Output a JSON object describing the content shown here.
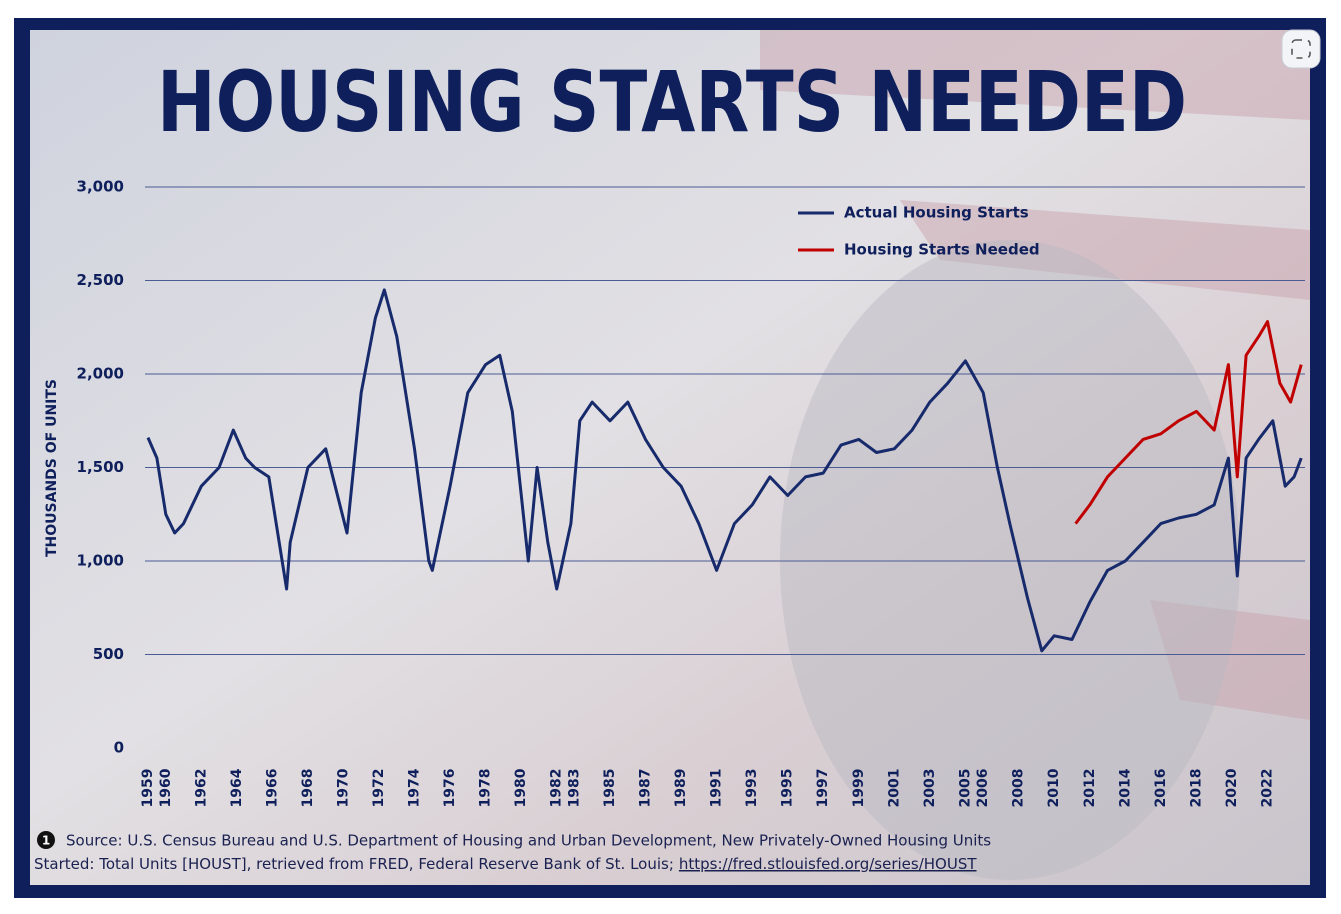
{
  "chart_data": {
    "type": "line",
    "title": "HOUSING STARTS NEEDED",
    "y_label": "THOUSANDS OF UNITS",
    "xlim": [
      1959,
      2024
    ],
    "xticks": [
      1959,
      1960,
      1962,
      1964,
      1966,
      1968,
      1970,
      1972,
      1974,
      1976,
      1978,
      1980,
      1982,
      1983,
      1985,
      1987,
      1989,
      1991,
      1993,
      1995,
      1997,
      1999,
      2001,
      2003,
      2005,
      2006,
      2008,
      2010,
      2012,
      2014,
      2016,
      2018,
      2020,
      2022
    ],
    "ylim": [
      0,
      3000
    ],
    "yticks": [
      0,
      500,
      {
        "value": 1000,
        "label": "1,000"
      },
      {
        "value": 1500,
        "label": "1,500"
      },
      {
        "value": 2000,
        "label": "2,000"
      },
      {
        "value": 2500,
        "label": "2,500"
      },
      {
        "value": 3000,
        "label": "3,000"
      }
    ],
    "grid": true,
    "legend": "top-right",
    "series": [
      {
        "name": "Actual Housing Starts",
        "color": "#172a6b",
        "x": [
          1959.0,
          1959.5,
          1960.0,
          1960.5,
          1961.0,
          1962.0,
          1963.0,
          1963.8,
          1964.5,
          1965.0,
          1965.8,
          1966.8,
          1967.0,
          1968.0,
          1969.0,
          1969.8,
          1970.2,
          1971.0,
          1971.8,
          1972.3,
          1973.0,
          1974.0,
          1974.8,
          1975.0,
          1976.0,
          1977.0,
          1978.0,
          1978.8,
          1979.5,
          1980.4,
          1980.9,
          1981.5,
          1982.0,
          1982.8,
          1983.3,
          1984.0,
          1985.0,
          1986.0,
          1987.0,
          1988.0,
          1989.0,
          1990.0,
          1991.0,
          1992.0,
          1993.0,
          1994.0,
          1995.0,
          1996.0,
          1997.0,
          1998.0,
          1999.0,
          2000.0,
          2001.0,
          2002.0,
          2003.0,
          2004.0,
          2005.0,
          2006.0,
          2006.8,
          2007.5,
          2008.5,
          2009.3,
          2010.0,
          2011.0,
          2012.0,
          2013.0,
          2014.0,
          2015.0,
          2016.0,
          2017.0,
          2018.0,
          2019.0,
          2019.8,
          2020.3,
          2020.8,
          2021.5,
          2022.3,
          2023.0,
          2023.5,
          2023.9
        ],
        "values": [
          1660,
          1550,
          1250,
          1150,
          1200,
          1400,
          1500,
          1700,
          1550,
          1500,
          1450,
          850,
          1100,
          1500,
          1600,
          1300,
          1150,
          1900,
          2300,
          2450,
          2200,
          1600,
          1000,
          950,
          1400,
          1900,
          2050,
          2100,
          1800,
          1000,
          1500,
          1100,
          850,
          1200,
          1750,
          1850,
          1750,
          1850,
          1650,
          1500,
          1400,
          1200,
          950,
          1200,
          1300,
          1450,
          1350,
          1450,
          1470,
          1620,
          1650,
          1580,
          1600,
          1700,
          1850,
          1950,
          2070,
          1900,
          1500,
          1200,
          800,
          520,
          600,
          580,
          780,
          950,
          1000,
          1100,
          1200,
          1230,
          1250,
          1300,
          1550,
          920,
          1550,
          1650,
          1750,
          1400,
          1450,
          1550
        ]
      },
      {
        "name": "Housing Starts Needed",
        "color": "#c00000",
        "x": [
          2011.2,
          2012.0,
          2013.0,
          2014.0,
          2015.0,
          2016.0,
          2017.0,
          2018.0,
          2019.0,
          2019.8,
          2020.3,
          2020.8,
          2021.5,
          2022.0,
          2022.7,
          2023.3,
          2023.9
        ],
        "values": [
          1200,
          1300,
          1450,
          1550,
          1650,
          1680,
          1750,
          1800,
          1700,
          2050,
          1450,
          2100,
          2200,
          2280,
          1950,
          1850,
          2050
        ]
      }
    ],
    "source_line1": "Source: U.S. Census Bureau and U.S. Department of Housing and Urban Development, New Privately-Owned Housing Units",
    "source_line2": "Started: Total Units [HOUST], retrieved from FRED, Federal Reserve Bank of St. Louis;",
    "source_link": "https://fred.stlouisfed.org/series/HOUST"
  }
}
